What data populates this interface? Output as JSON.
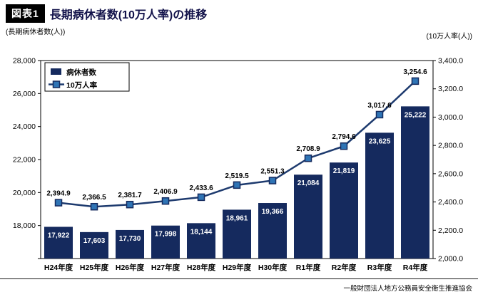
{
  "header": {
    "badge": "図表1",
    "title": "長期病休者数(10万人率)の推移"
  },
  "axis_titles": {
    "left": "(長期病休者数(人))",
    "right": "(10万人率(人))"
  },
  "legend": {
    "bar_label": "病休者数",
    "line_label": "10万人率",
    "position": "top-left-inside"
  },
  "footer": "一般財団法人地方公務員安全衛生推進協会",
  "colors": {
    "bar": "#152a5e",
    "line": "#1d3a6e",
    "marker_fill": "#2f74b5",
    "marker_stroke": "#152a5e",
    "bar_value_text": "#ffffff",
    "line_value_text": "#000000",
    "axis": "#000000",
    "title_text": "#12124a"
  },
  "chart_data": {
    "type": "bar",
    "subtype": "bar+line combo, dual axis",
    "title": "長期病休者数(10万人率)の推移",
    "categories": [
      "H24年度",
      "H25年度",
      "H26年度",
      "H27年度",
      "H28年度",
      "H29年度",
      "H30年度",
      "R1年度",
      "R2年度",
      "R3年度",
      "R4年度"
    ],
    "series": [
      {
        "name": "病休者数",
        "type": "bar",
        "axis": "left",
        "values": [
          17922,
          17603,
          17730,
          17998,
          18144,
          18961,
          19366,
          21084,
          21819,
          23625,
          25222
        ]
      },
      {
        "name": "10万人率",
        "type": "line",
        "axis": "right",
        "values": [
          2394.9,
          2366.5,
          2381.7,
          2406.9,
          2433.6,
          2519.5,
          2551.3,
          2708.9,
          2794.6,
          3017.6,
          3254.6
        ]
      }
    ],
    "left_axis": {
      "label": "(長期病休者数(人))",
      "min": 16000,
      "max": 28000,
      "step": 2000,
      "tick_labels_shown_from": 18000
    },
    "right_axis": {
      "label": "(10万人率(人))",
      "min": 2000,
      "max": 3400,
      "step": 200
    },
    "grid": false,
    "legend_position": "top-left inside plot",
    "data_labels": true
  }
}
